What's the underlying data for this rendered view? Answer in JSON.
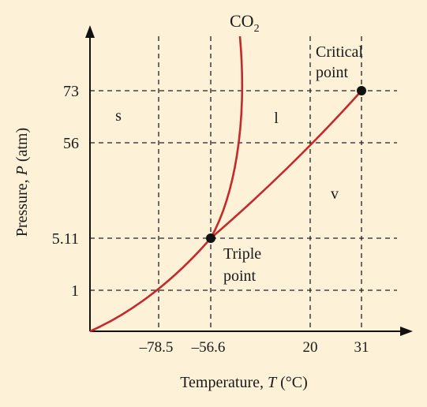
{
  "title": "CO",
  "title_sub": "2",
  "axis": {
    "x_label_prefix": "Temperature, ",
    "x_label_var": "T",
    "x_label_unit": " (°C)",
    "y_label_prefix": "Pressure, ",
    "y_label_var": "P",
    "y_label_unit": " (atm)"
  },
  "x_ticks": [
    "–78.5",
    "–56.6",
    "20",
    "31"
  ],
  "y_ticks": [
    "73",
    "56",
    "5.11",
    "1"
  ],
  "regions": {
    "solid": "s",
    "liquid": "l",
    "vapor": "v"
  },
  "critical_point": {
    "line1": "Critical",
    "line2": "point"
  },
  "triple_point": {
    "line1": "Triple",
    "line2": "point"
  },
  "colors": {
    "curve": "#c42a2a",
    "background": "#fdf1d8",
    "axis": "#111111"
  }
}
